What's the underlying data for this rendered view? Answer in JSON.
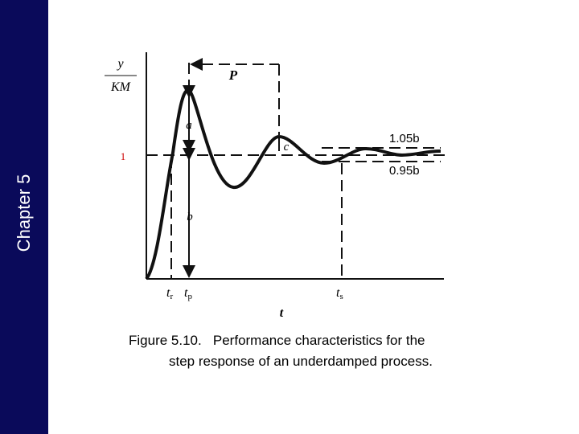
{
  "sidebar": {
    "title": "Chapter 5"
  },
  "figure": {
    "y_label": {
      "numerator": "y",
      "denominator": "KM"
    },
    "steady_value": "1",
    "period": "P",
    "overshoot": "a",
    "second_peak": "c",
    "final_value": "b",
    "upper_band": "1.05b",
    "lower_band": "0.95b",
    "rise_time": {
      "main": "t",
      "sub": "r"
    },
    "peak_time": {
      "main": "t",
      "sub": "p"
    },
    "settling_time": {
      "main": "t",
      "sub": "s"
    },
    "x_label": "t",
    "caption": [
      "Figure 5.10.   Performance characteristics for the",
      "step response of an underdamped process."
    ]
  }
}
